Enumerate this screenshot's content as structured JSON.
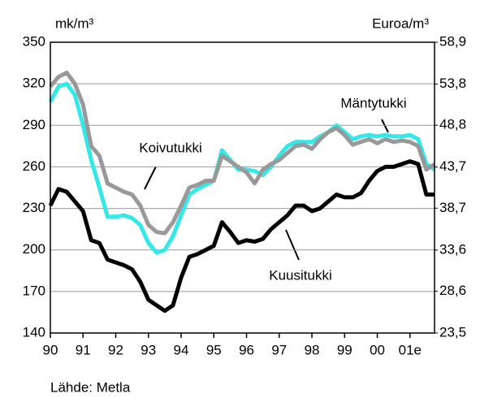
{
  "chart_data": {
    "type": "line",
    "y_label": "mk/m³",
    "y2_label": "Euroa/m³",
    "source": "Lähde: Metla",
    "x": [
      1990,
      1990.25,
      1990.5,
      1990.75,
      1991,
      1991.25,
      1991.5,
      1991.75,
      1992,
      1992.25,
      1992.5,
      1992.75,
      1993,
      1993.25,
      1993.5,
      1993.75,
      1994,
      1994.25,
      1994.5,
      1994.75,
      1995,
      1995.25,
      1995.5,
      1995.75,
      1996,
      1996.25,
      1996.5,
      1996.75,
      1997,
      1997.25,
      1997.5,
      1997.75,
      1998,
      1998.25,
      1998.5,
      1998.75,
      1999,
      1999.25,
      1999.5,
      1999.75,
      2000,
      2000.25,
      2000.5,
      2000.75,
      2001,
      2001.25,
      2001.5,
      2001.75
    ],
    "series": [
      {
        "name": "Mäntytukki",
        "color": "#33e8e8",
        "values": [
          307,
          318,
          320,
          312,
          290,
          265,
          245,
          224,
          224,
          225,
          223,
          218,
          205,
          198,
          200,
          210,
          225,
          240,
          244,
          247,
          250,
          272,
          265,
          258,
          258,
          257,
          254,
          260,
          268,
          275,
          278,
          278,
          278,
          282,
          285,
          290,
          285,
          280,
          282,
          283,
          282,
          283,
          282,
          282,
          283,
          280,
          262,
          258
        ]
      },
      {
        "name": "Koivutukki",
        "color": "#999999",
        "values": [
          318,
          325,
          328,
          320,
          305,
          275,
          268,
          248,
          245,
          242,
          240,
          232,
          218,
          213,
          212,
          220,
          232,
          245,
          247,
          250,
          250,
          268,
          264,
          260,
          256,
          248,
          258,
          262,
          265,
          270,
          275,
          276,
          273,
          280,
          285,
          288,
          283,
          276,
          278,
          280,
          277,
          280,
          278,
          279,
          278,
          275,
          258,
          262
        ]
      },
      {
        "name": "Kuusitukki",
        "color": "#000000",
        "values": [
          232,
          244,
          242,
          235,
          228,
          207,
          205,
          193,
          191,
          189,
          186,
          177,
          164,
          160,
          156,
          160,
          180,
          195,
          197,
          200,
          203,
          220,
          213,
          205,
          207,
          206,
          208,
          215,
          220,
          225,
          232,
          232,
          228,
          230,
          235,
          240,
          238,
          238,
          241,
          250,
          257,
          260,
          260,
          262,
          264,
          262,
          240,
          240
        ]
      }
    ],
    "xlim": [
      1990,
      2001.75
    ],
    "xticks": [
      {
        "value": 1990,
        "label": "90"
      },
      {
        "value": 1991,
        "label": "91"
      },
      {
        "value": 1992,
        "label": "92"
      },
      {
        "value": 1993,
        "label": "93"
      },
      {
        "value": 1994,
        "label": "94"
      },
      {
        "value": 1995,
        "label": "95"
      },
      {
        "value": 1996,
        "label": "96"
      },
      {
        "value": 1997,
        "label": "97"
      },
      {
        "value": 1998,
        "label": "98"
      },
      {
        "value": 1999,
        "label": "99"
      },
      {
        "value": 2000,
        "label": "00"
      },
      {
        "value": 2001,
        "label": "01e"
      }
    ],
    "ylim": [
      140,
      350
    ],
    "yticks": [
      140,
      170,
      200,
      230,
      260,
      290,
      320,
      350
    ],
    "y2lim": [
      23.5,
      58.9
    ],
    "y2ticks": [
      {
        "value": 23.5,
        "label": "23,5"
      },
      {
        "value": 28.6,
        "label": "28,6"
      },
      {
        "value": 33.6,
        "label": "33,6"
      },
      {
        "value": 38.7,
        "label": "38,7"
      },
      {
        "value": 43.7,
        "label": "43,7"
      },
      {
        "value": 48.8,
        "label": "48,8"
      },
      {
        "value": 53.8,
        "label": "53,8"
      },
      {
        "value": 58.9,
        "label": "58,9"
      }
    ],
    "grid": true
  }
}
